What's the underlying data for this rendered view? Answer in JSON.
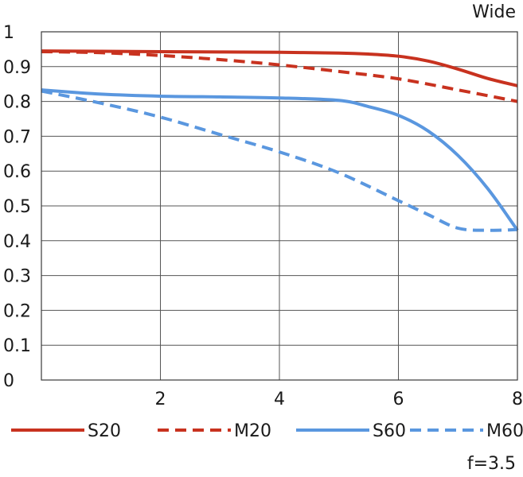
{
  "chart_data": {
    "type": "line",
    "title": "Wide",
    "subtitle": "f=3.5",
    "xlabel": "",
    "ylabel": "",
    "xlim": [
      0,
      8
    ],
    "ylim": [
      0,
      1
    ],
    "x_ticks": [
      2,
      4,
      6,
      8
    ],
    "y_ticks": [
      0,
      0.1,
      0.2,
      0.3,
      0.4,
      0.5,
      0.6,
      0.7,
      0.8,
      0.9,
      1
    ],
    "y_tick_labels": [
      "0",
      "0.1",
      "0.2",
      "0.3",
      "0.4",
      "0.5",
      "0.6",
      "0.7",
      "0.8",
      "0.9",
      "1"
    ],
    "x_tick_labels": [
      "2",
      "4",
      "6",
      "8"
    ],
    "grid": true,
    "legend_position": "bottom",
    "series": [
      {
        "name": "S20",
        "color": "#c8321f",
        "dash": "solid",
        "points": [
          [
            0,
            0.945
          ],
          [
            1,
            0.944
          ],
          [
            2,
            0.943
          ],
          [
            3,
            0.942
          ],
          [
            4,
            0.941
          ],
          [
            5,
            0.939
          ],
          [
            5.5,
            0.936
          ],
          [
            6,
            0.93
          ],
          [
            6.5,
            0.916
          ],
          [
            7,
            0.893
          ],
          [
            7.5,
            0.866
          ],
          [
            8,
            0.845
          ]
        ]
      },
      {
        "name": "M20",
        "color": "#c8321f",
        "dash": "dashed",
        "points": [
          [
            0,
            0.943
          ],
          [
            1,
            0.94
          ],
          [
            2,
            0.932
          ],
          [
            3,
            0.92
          ],
          [
            4,
            0.905
          ],
          [
            5,
            0.886
          ],
          [
            6,
            0.865
          ],
          [
            7,
            0.833
          ],
          [
            8,
            0.8
          ]
        ]
      },
      {
        "name": "S60",
        "color": "#5a97df",
        "dash": "solid",
        "points": [
          [
            0,
            0.833
          ],
          [
            1,
            0.821
          ],
          [
            2,
            0.815
          ],
          [
            3,
            0.813
          ],
          [
            4,
            0.81
          ],
          [
            5,
            0.803
          ],
          [
            5.5,
            0.785
          ],
          [
            6,
            0.76
          ],
          [
            6.5,
            0.715
          ],
          [
            7,
            0.645
          ],
          [
            7.5,
            0.55
          ],
          [
            8,
            0.43
          ]
        ]
      },
      {
        "name": "M60",
        "color": "#5a97df",
        "dash": "dashed",
        "points": [
          [
            0,
            0.83
          ],
          [
            1,
            0.795
          ],
          [
            2,
            0.755
          ],
          [
            3,
            0.705
          ],
          [
            4,
            0.655
          ],
          [
            5,
            0.595
          ],
          [
            6,
            0.515
          ],
          [
            6.5,
            0.475
          ],
          [
            7,
            0.436
          ],
          [
            7.5,
            0.43
          ],
          [
            8,
            0.432
          ]
        ]
      }
    ]
  }
}
